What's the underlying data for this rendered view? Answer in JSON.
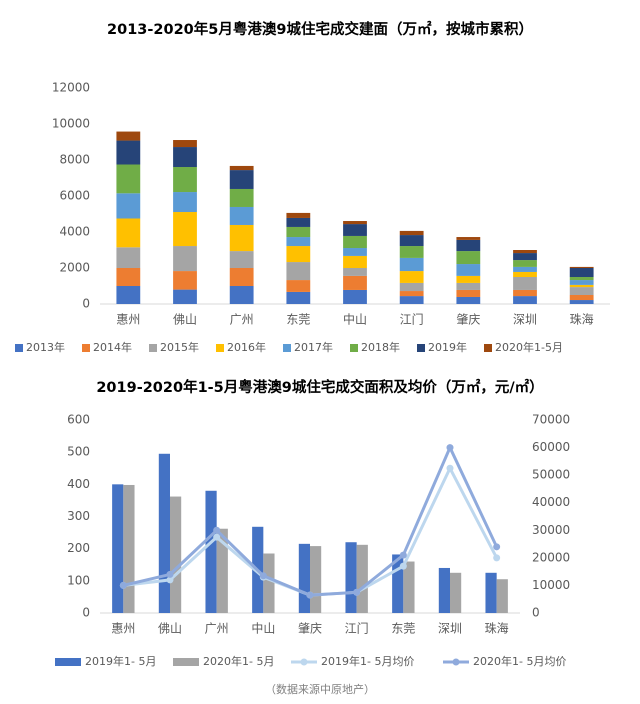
{
  "chart_data": [
    {
      "type": "bar",
      "stacked": true,
      "title": "2013-2020年5月粤港澳9城住宅成交建面（万㎡，按城市累积）",
      "categories": [
        "惠州",
        "佛山",
        "广州",
        "东莞",
        "中山",
        "江门",
        "肇庆",
        "深圳",
        "珠海"
      ],
      "ylim": [
        0,
        12000
      ],
      "yticks": [
        0,
        2000,
        4000,
        6000,
        8000,
        10000,
        12000
      ],
      "grid": false,
      "legend": "bottom",
      "series": [
        {
          "name": "2013年",
          "color": "#4472c4",
          "values": [
            1000,
            800,
            1000,
            670,
            780,
            440,
            390,
            440,
            220
          ]
        },
        {
          "name": "2014年",
          "color": "#ed7d31",
          "values": [
            1000,
            1030,
            1000,
            660,
            780,
            280,
            390,
            340,
            280
          ]
        },
        {
          "name": "2015年",
          "color": "#a5a5a5",
          "values": [
            1150,
            1390,
            940,
            1000,
            440,
            450,
            390,
            720,
            440
          ]
        },
        {
          "name": "2016年",
          "color": "#ffc000",
          "values": [
            1600,
            1890,
            1450,
            890,
            670,
            660,
            390,
            280,
            120
          ]
        },
        {
          "name": "2017年",
          "color": "#5b9bd5",
          "values": [
            1400,
            1110,
            1000,
            500,
            440,
            730,
            660,
            280,
            270
          ]
        },
        {
          "name": "2018年",
          "color": "#70ad47",
          "values": [
            1600,
            1390,
            1000,
            560,
            670,
            660,
            720,
            380,
            170
          ]
        },
        {
          "name": "2019年",
          "color": "#264478",
          "values": [
            1330,
            1110,
            1050,
            500,
            660,
            610,
            620,
            390,
            500
          ]
        },
        {
          "name": "2020年1-5月",
          "color": "#9e480e",
          "values": [
            500,
            390,
            230,
            280,
            170,
            230,
            160,
            170,
            60
          ]
        }
      ]
    },
    {
      "type": "combo",
      "title": "2019-2020年1-5月粤港澳9城住宅成交面积及均价（万㎡，元/㎡）",
      "categories": [
        "惠州",
        "佛山",
        "广州",
        "中山",
        "肇庆",
        "江门",
        "东莞",
        "深圳",
        "珠海"
      ],
      "ylim": [
        0,
        600
      ],
      "yticks": [
        0,
        100,
        200,
        300,
        400,
        500,
        600
      ],
      "y2lim": [
        0,
        70000
      ],
      "y2ticks": [
        0,
        10000,
        20000,
        30000,
        40000,
        50000,
        60000,
        70000
      ],
      "legend": "bottom",
      "series": [
        {
          "name": "2019年1- 5月",
          "kind": "bar",
          "color": "#4472c4",
          "values": [
            400,
            495,
            380,
            268,
            215,
            220,
            182,
            140,
            125
          ]
        },
        {
          "name": "2020年1- 5月",
          "kind": "bar",
          "color": "#a5a5a5",
          "values": [
            398,
            362,
            262,
            185,
            208,
            212,
            160,
            125,
            105
          ]
        },
        {
          "name": "2019年1- 5月均价",
          "kind": "line",
          "axis": "y2",
          "color": "#bdd7ee",
          "values": [
            10000,
            12000,
            27500,
            13000,
            6500,
            7500,
            17000,
            52500,
            20000
          ]
        },
        {
          "name": "2020年1- 5月均价",
          "kind": "line",
          "axis": "y2",
          "color": "#8faadc",
          "values": [
            10000,
            14000,
            30000,
            13500,
            6500,
            7500,
            21000,
            60000,
            24000
          ]
        }
      ],
      "note": "（数据来源中原地产）"
    }
  ]
}
